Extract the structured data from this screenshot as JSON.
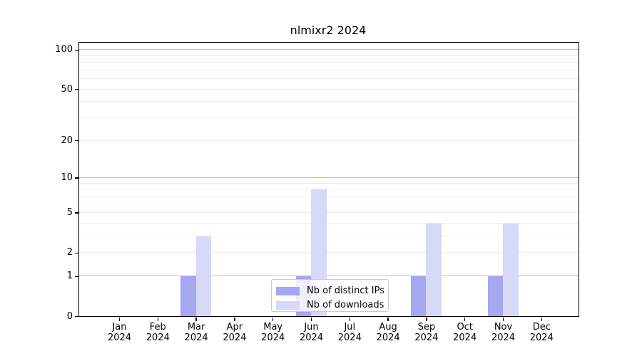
{
  "figure": {
    "background": "#ffffff",
    "axis_color": "#000000"
  },
  "chart_data": {
    "type": "bar",
    "title": "nlmixr2 2024",
    "year_label": "2024",
    "categories": [
      "Jan",
      "Feb",
      "Mar",
      "Apr",
      "May",
      "Jun",
      "Jul",
      "Aug",
      "Sep",
      "Oct",
      "Nov",
      "Dec"
    ],
    "series": [
      {
        "name": "Nb of distinct IPs",
        "color": "#a6a6f1",
        "values": [
          0,
          0,
          1,
          0,
          0,
          1,
          0,
          0,
          1,
          0,
          1,
          0
        ]
      },
      {
        "name": "Nb of downloads",
        "color": "#d8d8f7",
        "values": [
          0,
          0,
          3,
          0,
          0,
          8,
          0,
          0,
          4,
          0,
          4,
          0
        ]
      }
    ],
    "yscale": "log1p",
    "ylim": [
      0,
      113
    ],
    "ytick_values": [
      0,
      1,
      2,
      5,
      10,
      20,
      50,
      100
    ],
    "grid": {
      "major_values": [
        1,
        10,
        100
      ],
      "minor_values": [
        2,
        3,
        4,
        5,
        6,
        7,
        8,
        9,
        20,
        30,
        40,
        50,
        60,
        70,
        80,
        90
      ],
      "major_color": "#bcbcbc",
      "minor_color": "#ececec"
    },
    "legend": {
      "position": "lower center inside",
      "entries": [
        "Nb of distinct IPs",
        "Nb of downloads"
      ]
    }
  }
}
